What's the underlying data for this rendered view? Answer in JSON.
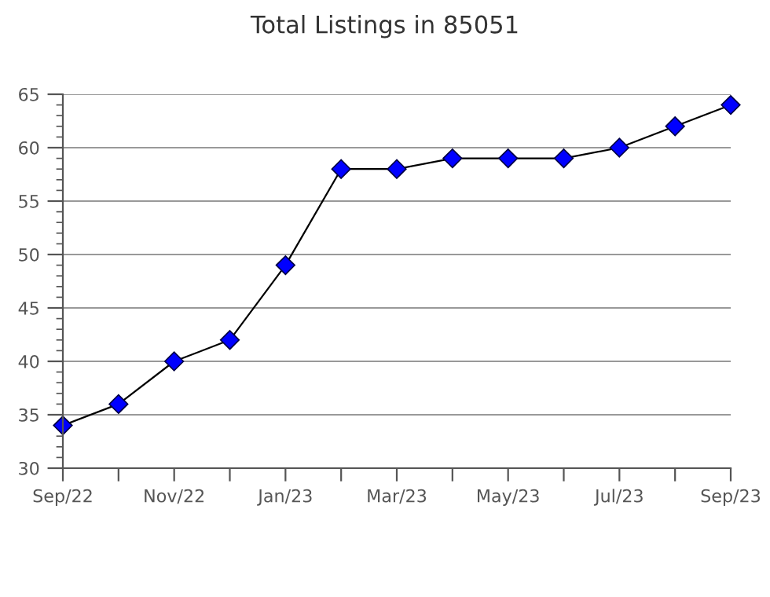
{
  "chart_data": {
    "type": "line",
    "title": "Total Listings in 85051",
    "categories": [
      "Sep/22",
      null,
      "Nov/22",
      null,
      "Jan/23",
      null,
      "Mar/23",
      null,
      "May/23",
      null,
      "Jul/23",
      null,
      "Sep/23"
    ],
    "series": [
      {
        "color": "#0000ff",
        "values": [
          34,
          36,
          40,
          42,
          49,
          58,
          58,
          59,
          59,
          59,
          60,
          62,
          64
        ]
      }
    ],
    "ylim": [
      30,
      65
    ],
    "yticks": [
      30,
      35,
      40,
      45,
      50,
      55,
      60,
      65
    ],
    "grid": "y",
    "legend": false,
    "marker": "diamond",
    "line_style": "solid"
  }
}
